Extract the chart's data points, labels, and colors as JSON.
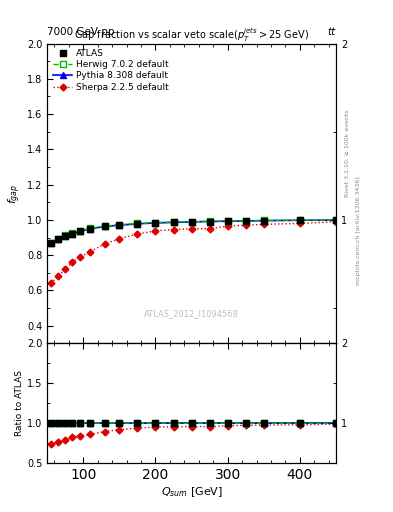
{
  "title": "Gap fraction vs scalar veto scale($p_T^{jets}$$>$25 GeV)",
  "header_left": "7000 GeV pp",
  "header_right": "tt",
  "watermark": "ATLAS_2012_I1094568",
  "xlabel": "$Q_{sum}$ [GeV]",
  "ylabel_main": "$f_{gap}$",
  "ylabel_ratio": "Ratio to ATLAS",
  "right_label_top": "Rivet 3.1.10, ≥ 100k events",
  "right_label_bot": "mcplots.cern.ch [arXiv:1306.3436]",
  "xlim": [
    50,
    450
  ],
  "ylim_main": [
    0.3,
    2.0
  ],
  "ylim_ratio": [
    0.5,
    2.0
  ],
  "atlas_x": [
    55,
    65,
    75,
    85,
    95,
    110,
    130,
    150,
    175,
    200,
    225,
    250,
    275,
    300,
    325,
    350,
    400,
    450
  ],
  "atlas_y": [
    0.868,
    0.89,
    0.91,
    0.922,
    0.935,
    0.95,
    0.963,
    0.97,
    0.978,
    0.983,
    0.986,
    0.989,
    0.991,
    0.993,
    0.994,
    0.996,
    0.998,
    0.999
  ],
  "herwig_x": [
    55,
    65,
    75,
    85,
    95,
    110,
    130,
    150,
    175,
    200,
    225,
    250,
    275,
    300,
    325,
    350,
    400,
    450
  ],
  "herwig_y": [
    0.87,
    0.893,
    0.912,
    0.925,
    0.938,
    0.953,
    0.965,
    0.973,
    0.98,
    0.985,
    0.988,
    0.99,
    0.992,
    0.994,
    0.995,
    0.997,
    0.998,
    0.999
  ],
  "pythia_x": [
    55,
    65,
    75,
    85,
    95,
    110,
    130,
    150,
    175,
    200,
    225,
    250,
    275,
    300,
    325,
    350,
    400,
    450
  ],
  "pythia_y": [
    0.868,
    0.89,
    0.91,
    0.922,
    0.935,
    0.95,
    0.963,
    0.97,
    0.978,
    0.983,
    0.986,
    0.989,
    0.991,
    0.993,
    0.994,
    0.996,
    0.998,
    0.999
  ],
  "sherpa_x": [
    55,
    65,
    75,
    85,
    95,
    110,
    130,
    150,
    175,
    200,
    225,
    250,
    275,
    300,
    325,
    350,
    400,
    450
  ],
  "sherpa_y": [
    0.64,
    0.68,
    0.72,
    0.76,
    0.79,
    0.82,
    0.865,
    0.893,
    0.92,
    0.938,
    0.945,
    0.95,
    0.95,
    0.965,
    0.97,
    0.975,
    0.98,
    0.99
  ],
  "atlas_color": "#000000",
  "herwig_color": "#00bb00",
  "pythia_color": "#0000ee",
  "sherpa_color": "#dd0000",
  "yticks_main": [
    0.4,
    0.6,
    0.8,
    1.0,
    1.2,
    1.4,
    1.6,
    1.8,
    2.0
  ],
  "yticks_ratio": [
    0.5,
    1.0,
    1.5,
    2.0
  ]
}
